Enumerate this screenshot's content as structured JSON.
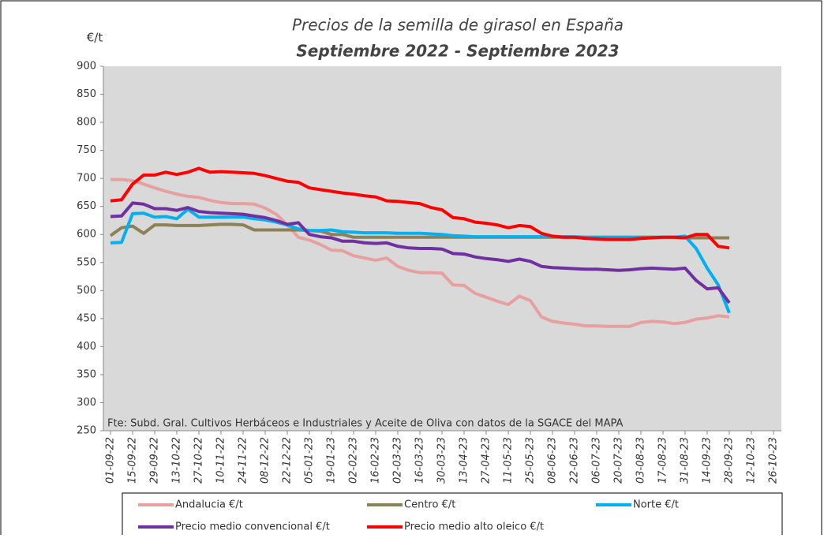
{
  "chart_data": {
    "type": "line",
    "title": "Precios de la semilla de girasol en España",
    "subtitle": "Septiembre 2022 - Septiembre 2023",
    "y_label": "€/t",
    "annotation": "Fte: Subd. Gral. Cultivos Herbáceos e Industriales y Aceite de Oliva con datos de la SGACE del MAPA",
    "x": [
      "01-09-22",
      "08-09-22",
      "15-09-22",
      "22-09-22",
      "29-09-22",
      "06-10-22",
      "13-10-22",
      "20-10-22",
      "27-10-22",
      "03-11-22",
      "10-11-22",
      "17-11-22",
      "24-11-22",
      "01-12-22",
      "08-12-22",
      "15-12-22",
      "22-12-22",
      "29-12-22",
      "05-01-23",
      "12-01-23",
      "19-01-23",
      "26-01-23",
      "02-02-23",
      "09-02-23",
      "16-02-23",
      "23-02-23",
      "02-03-23",
      "09-03-23",
      "16-03-23",
      "23-03-23",
      "30-03-23",
      "06-04-23",
      "13-04-23",
      "20-04-23",
      "27-04-23",
      "04-05-23",
      "11-05-23",
      "18-05-23",
      "25-05-23",
      "01-06-23",
      "08-06-23",
      "15-06-23",
      "22-06-23",
      "29-06-23",
      "06-07-23",
      "13-07-23",
      "20-07-23",
      "27-07-23",
      "03-08-23",
      "10-08-23",
      "17-08-23",
      "24-08-23",
      "31-08-23",
      "07-09-23",
      "14-09-23",
      "21-09-23",
      "28-09-23"
    ],
    "series": [
      {
        "name": "Andalucia €/t",
        "color": "#e6a0a0",
        "values": [
          698,
          698,
          696,
          690,
          683,
          677,
          672,
          668,
          666,
          661,
          657,
          655,
          655,
          654,
          647,
          636,
          617,
          595,
          590,
          582,
          572,
          571,
          562,
          558,
          554,
          558,
          543,
          536,
          532,
          532,
          531,
          510,
          509,
          495,
          488,
          481,
          475,
          490,
          482,
          453,
          445,
          442,
          440,
          437,
          437,
          436,
          436,
          436,
          443,
          445,
          444,
          441,
          443,
          449,
          451,
          455,
          453
        ]
      },
      {
        "name": "Centro €/t",
        "color": "#8c8257",
        "values": [
          598,
          612,
          615,
          602,
          617,
          617,
          616,
          616,
          616,
          617,
          618,
          618,
          617,
          608,
          608,
          608,
          608,
          608,
          607,
          606,
          600,
          600,
          595,
          595,
          595,
          595,
          595,
          595,
          595,
          595,
          595,
          595,
          595,
          595,
          595,
          595,
          595,
          595,
          595,
          595,
          595,
          595,
          595,
          595,
          595,
          595,
          595,
          595,
          595,
          595,
          595,
          595,
          594,
          594,
          594,
          594,
          594
        ]
      },
      {
        "name": "Norte €/t",
        "color": "#00b0f0",
        "values": [
          585,
          586,
          637,
          638,
          631,
          632,
          628,
          645,
          631,
          631,
          631,
          631,
          631,
          628,
          626,
          622,
          617,
          610,
          607,
          607,
          608,
          605,
          604,
          603,
          603,
          603,
          602,
          602,
          602,
          601,
          600,
          598,
          597,
          596,
          596,
          596,
          596,
          596,
          596,
          596,
          596,
          596,
          596,
          595,
          595,
          595,
          595,
          595,
          595,
          595,
          595,
          595,
          597,
          575,
          540,
          510,
          460
        ]
      },
      {
        "name": "Precio medio convencional €/t",
        "color": "#7030a0",
        "values": [
          632,
          633,
          656,
          654,
          646,
          646,
          643,
          648,
          641,
          639,
          638,
          637,
          636,
          633,
          630,
          625,
          618,
          621,
          600,
          596,
          594,
          588,
          588,
          585,
          584,
          585,
          579,
          576,
          575,
          575,
          574,
          566,
          565,
          560,
          557,
          555,
          552,
          556,
          552,
          543,
          541,
          540,
          539,
          538,
          538,
          537,
          536,
          537,
          539,
          540,
          539,
          538,
          540,
          518,
          503,
          505,
          478
        ]
      },
      {
        "name": "Precio medio alto oleico €/t",
        "color": "#ff0000",
        "values": [
          660,
          662,
          690,
          706,
          706,
          711,
          707,
          711,
          718,
          711,
          712,
          711,
          710,
          709,
          705,
          700,
          695,
          693,
          683,
          680,
          677,
          674,
          672,
          669,
          667,
          660,
          659,
          657,
          655,
          648,
          644,
          630,
          628,
          622,
          620,
          617,
          612,
          616,
          614,
          602,
          597,
          595,
          595,
          593,
          592,
          591,
          591,
          591,
          593,
          594,
          595,
          595,
          594,
          600,
          600,
          579,
          576
        ]
      }
    ],
    "ylim": [
      250,
      900
    ],
    "yticks": [
      250,
      300,
      350,
      400,
      450,
      500,
      550,
      600,
      650,
      700,
      750,
      800,
      850,
      900
    ],
    "xlim": [
      "01-09-22",
      "26-10-23"
    ],
    "xticks": [
      "01-09-22",
      "15-09-22",
      "29-09-22",
      "13-10-22",
      "27-10-22",
      "10-11-22",
      "24-11-22",
      "08-12-22",
      "22-12-22",
      "05-01-23",
      "19-01-23",
      "02-02-23",
      "16-02-23",
      "02-03-23",
      "16-03-23",
      "30-03-23",
      "13-04-23",
      "27-04-23",
      "11-05-23",
      "25-05-23",
      "08-06-23",
      "22-06-23",
      "06-07-23",
      "20-07-23",
      "03-08-23",
      "17-08-23",
      "31-08-23",
      "14-09-23",
      "28-09-23",
      "12-10-23",
      "26-10-23"
    ],
    "legend": "bottom"
  }
}
